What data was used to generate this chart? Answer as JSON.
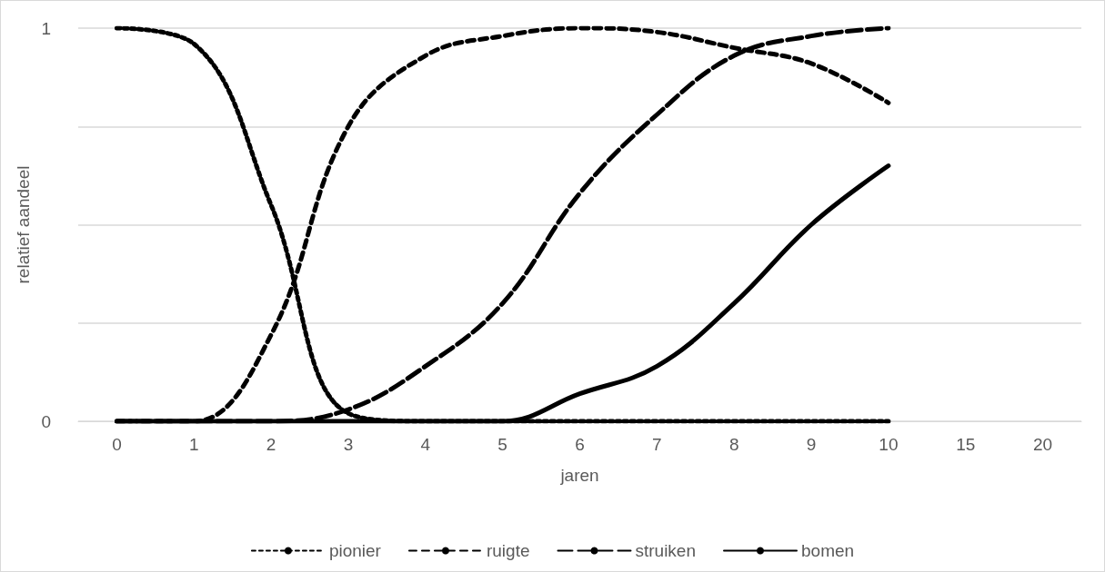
{
  "chart_data": {
    "type": "line",
    "xlabel": "jaren",
    "ylabel": "relatief aandeel",
    "categories": [
      "0",
      "1",
      "2",
      "3",
      "4",
      "5",
      "6",
      "7",
      "8",
      "9",
      "10",
      "15",
      "20"
    ],
    "ylim": [
      0,
      1
    ],
    "yticks": [
      0,
      {
        "value": 0.25,
        "label": null
      },
      {
        "value": 0.5,
        "label": null
      },
      {
        "value": 0.75,
        "label": null
      },
      1
    ],
    "grid": "y",
    "legend": "bottom",
    "marker": "none",
    "series": [
      {
        "name": "pionier",
        "color": "#000000",
        "line_style": "dotted",
        "values": [
          1,
          0.96,
          0.55,
          0.02,
          0,
          0,
          0,
          0,
          0,
          0,
          0,
          null,
          null
        ]
      },
      {
        "name": "ruigte",
        "color": "#000000",
        "line_style": "dashed",
        "values": [
          0,
          0,
          0.22,
          0.75,
          0.93,
          0.98,
          1,
          0.99,
          0.95,
          0.91,
          0.81,
          null,
          null
        ]
      },
      {
        "name": "struiken",
        "color": "#000000",
        "line_style": "long-dashed",
        "values": [
          0,
          0,
          0,
          0.03,
          0.14,
          0.3,
          0.58,
          0.78,
          0.93,
          0.98,
          1,
          null,
          null
        ]
      },
      {
        "name": "bomen",
        "color": "#000000",
        "line_style": "solid",
        "values": [
          0,
          0,
          0,
          0,
          0,
          0,
          0.07,
          0.14,
          0.3,
          0.5,
          0.65,
          null,
          null
        ]
      }
    ]
  }
}
